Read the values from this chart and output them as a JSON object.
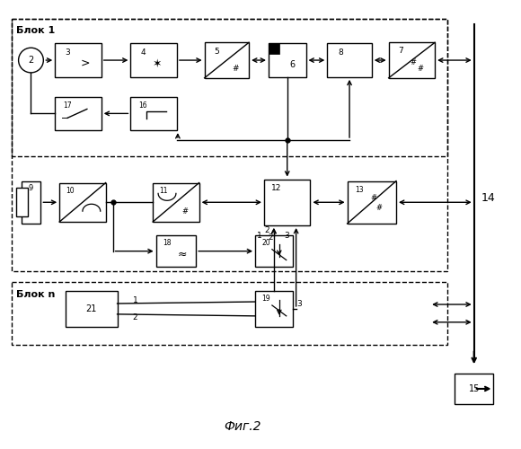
{
  "title": "Фиг.2",
  "blok1_label": "Блок 1",
  "blokn_label": "Блок n",
  "background": "#ffffff"
}
